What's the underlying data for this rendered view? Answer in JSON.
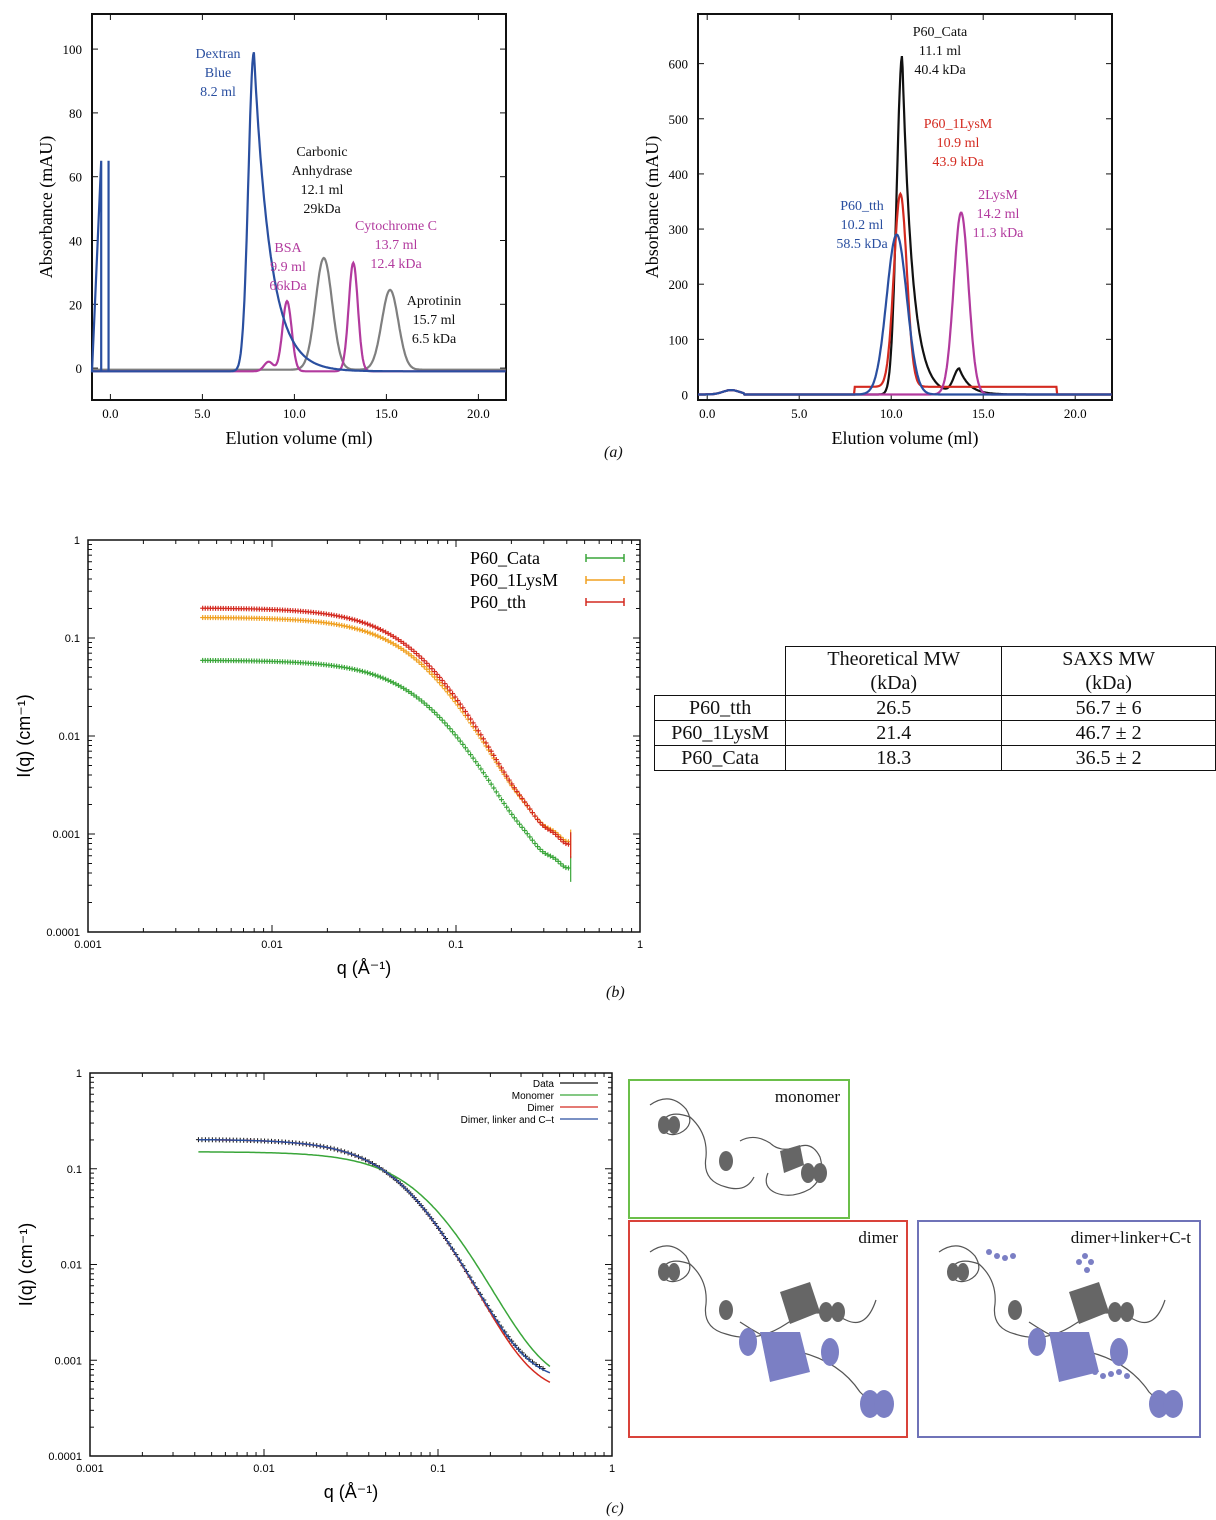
{
  "panels": {
    "a": "(a)",
    "b": "(b)",
    "c": "(c)"
  },
  "chart_data": [
    {
      "type": "line",
      "panel": "a-left",
      "xlabel": "Elution volume (ml)",
      "ylabel": "Absorbance (mAU)",
      "xlim": [
        -1,
        21.5
      ],
      "ylim": [
        -10,
        111
      ],
      "xticks": [
        0,
        5,
        10,
        15,
        20
      ],
      "xticklabels": [
        "0.0",
        "5.0",
        "10.0",
        "15.0",
        "20.0"
      ],
      "yticks": [
        0,
        20,
        40,
        60,
        80,
        100
      ],
      "series": [
        {
          "color": "#7f7f7f",
          "peaks": [
            [
              11.6,
              35
            ],
            [
              15.2,
              25
            ]
          ]
        },
        {
          "color": "#b23a9e",
          "peaks": [
            [
              8.6,
              3
            ],
            [
              9.6,
              22
            ],
            [
              13.2,
              34
            ]
          ]
        },
        {
          "color": "#2a4fa0",
          "peaks": [
            [
              7.8,
              100
            ]
          ]
        }
      ],
      "annotations": [
        {
          "lines": [
            "Dextran",
            "Blue",
            "8.2 ml"
          ],
          "color": "#2a4fa0"
        },
        {
          "lines": [
            "BSA",
            "9.9 ml",
            "66kDa"
          ],
          "color": "#b23a9e"
        },
        {
          "lines": [
            "Carbonic",
            "Anhydrase",
            "12.1 ml",
            "29kDa"
          ],
          "color": "#111111"
        },
        {
          "lines": [
            "Cytochrome C",
            "13.7 ml",
            "12.4 kDa"
          ],
          "color": "#b23a9e"
        },
        {
          "lines": [
            "Aprotinin",
            "15.7 ml",
            "6.5 kDa"
          ],
          "color": "#111111"
        }
      ]
    },
    {
      "type": "line",
      "panel": "a-right",
      "xlabel": "Elution volume (ml)",
      "ylabel": "Absorbance (mAU)",
      "xlim": [
        -0.5,
        22
      ],
      "ylim": [
        -10,
        690
      ],
      "xticks": [
        0,
        5,
        10,
        15,
        20
      ],
      "xticklabels": [
        "0.0",
        "5.0",
        "10.0",
        "15.0",
        "20.0"
      ],
      "yticks": [
        0,
        100,
        200,
        300,
        400,
        500,
        600
      ],
      "series": [
        {
          "name": "P60_Cata",
          "color": "#111111",
          "peaks": [
            [
              10.6,
              615
            ],
            [
              13.7,
              45
            ]
          ]
        },
        {
          "name": "P60_1LysM",
          "color": "#d42a20",
          "peaks": [
            [
              10.5,
              350
            ]
          ]
        },
        {
          "name": "2LysM",
          "color": "#b23a9e",
          "peaks": [
            [
              13.8,
              330
            ]
          ]
        },
        {
          "name": "P60_tth",
          "color": "#2a4fa0",
          "peaks": [
            [
              10.3,
              290
            ]
          ]
        }
      ],
      "annotations": [
        {
          "lines": [
            "P60_Cata",
            "11.1 ml",
            "40.4 kDa"
          ],
          "color": "#111111"
        },
        {
          "lines": [
            "P60_1LysM",
            "10.9 ml",
            "43.9 kDa"
          ],
          "color": "#d42a20"
        },
        {
          "lines": [
            "P60_tth",
            "10.2 ml",
            "58.5 kDa"
          ],
          "color": "#2a4fa0"
        },
        {
          "lines": [
            "2LysM",
            "14.2 ml",
            "11.3 kDa"
          ],
          "color": "#b23a9e"
        }
      ]
    },
    {
      "type": "scatter",
      "panel": "b",
      "xlabel": "q (Å⁻¹)",
      "ylabel": "I(q) (cm⁻¹)",
      "xscale": "log",
      "yscale": "log",
      "xlim": [
        0.001,
        1
      ],
      "ylim": [
        0.0001,
        1
      ],
      "xticklabels": [
        "0.001",
        "0.01",
        "0.1",
        "1"
      ],
      "yticklabels": [
        "0.0001",
        "0.001",
        "0.01",
        "0.1",
        "1"
      ],
      "legend_position": "top-right",
      "series": [
        {
          "name": "P60_Cata",
          "color": "#3aa63a",
          "I0": 0.059,
          "Rg": 21,
          "plateau": 0.00037
        },
        {
          "name": "P60_1LysM",
          "color": "#f0a020",
          "I0": 0.162,
          "Rg": 23,
          "plateau": 0.00068
        },
        {
          "name": "P60_tth",
          "color": "#d42a20",
          "I0": 0.202,
          "Rg": 24,
          "plateau": 0.00062
        }
      ]
    },
    {
      "type": "line",
      "panel": "c",
      "xlabel": "q (Å⁻¹)",
      "ylabel": "I(q) (cm⁻¹)",
      "xscale": "log",
      "yscale": "log",
      "xlim": [
        0.001,
        1
      ],
      "ylim": [
        0.0001,
        1
      ],
      "xticklabels": [
        "0.001",
        "0.01",
        "0.1",
        "1"
      ],
      "yticklabels": [
        "0.0001",
        "0.001",
        "0.01",
        "0.1",
        "1"
      ],
      "legend_position": "top-right",
      "series": [
        {
          "name": "Data",
          "color": "#111111",
          "I0": 0.202,
          "Rg": 24,
          "plateau": 0.00062
        },
        {
          "name": "Monomer",
          "color": "#3aa63a",
          "I0": 0.15,
          "Rg": 18,
          "plateau": 0.00055
        },
        {
          "name": "Dimer",
          "color": "#d42a20",
          "I0": 0.202,
          "Rg": 24,
          "plateau": 0.00045
        },
        {
          "name": "Dimer, linker and C–t",
          "color": "#2a4fa0",
          "I0": 0.202,
          "Rg": 24,
          "plateau": 0.0006
        }
      ]
    }
  ],
  "table": {
    "headers": [
      "",
      "Theoretical MW\n(kDa)",
      "SAXS MW\n(kDa)"
    ],
    "rows": [
      [
        "P60_tth",
        "26.5",
        "56.7 ± 6"
      ],
      [
        "P60_1LysM",
        "21.4",
        "46.7 ± 2"
      ],
      [
        "P60_Cata",
        "18.3",
        "36.5 ± 2"
      ]
    ]
  },
  "structures": [
    {
      "label": "monomer",
      "color": "#6bbf4a"
    },
    {
      "label": "dimer",
      "color": "#d9433a"
    },
    {
      "label": "dimer+linker+C-t",
      "color": "#6f73b8"
    }
  ]
}
